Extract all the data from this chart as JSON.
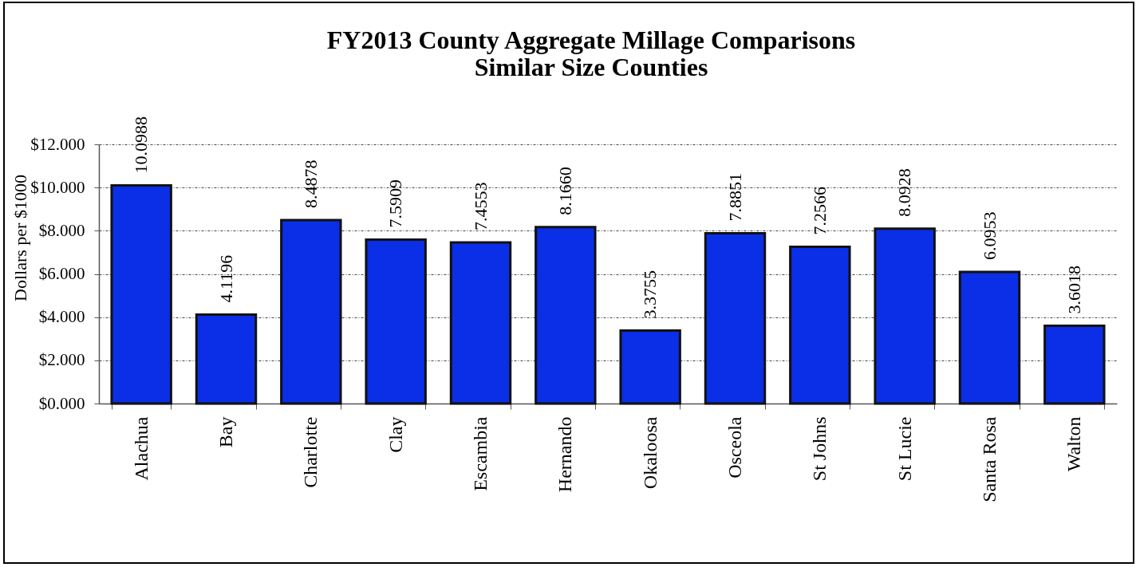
{
  "chart_data": {
    "type": "bar",
    "title": "FY2013 County Aggregate Millage Comparisons",
    "subtitle": "Similar Size Counties",
    "ylabel": "Dollars per $1000",
    "categories": [
      "Alachua",
      "Bay",
      "Charlotte",
      "Clay",
      "Escambia",
      "Hernando",
      "Okaloosa",
      "Osceola",
      "St Johns",
      "St Lucie",
      "Santa Rosa",
      "Walton"
    ],
    "values": [
      10.0988,
      4.1196,
      8.4878,
      7.5909,
      7.4553,
      8.166,
      3.3755,
      7.8851,
      7.2566,
      8.0928,
      6.0953,
      3.6018
    ],
    "value_labels": [
      "10.0988",
      "4.1196",
      "8.4878",
      "7.5909",
      "7.4553",
      "8.1660",
      "3.3755",
      "7.8851",
      "7.2566",
      "8.0928",
      "6.0953",
      "3.6018"
    ],
    "color": "#0a2fe6",
    "ylim": [
      0,
      12
    ],
    "yticks": [
      {
        "value": 0,
        "label": "$0.000"
      },
      {
        "value": 2,
        "label": "$2.000"
      },
      {
        "value": 4,
        "label": "$4.000"
      },
      {
        "value": 6,
        "label": "$6.000"
      },
      {
        "value": 8,
        "label": "$8.000"
      },
      {
        "value": 10,
        "label": "$10.000"
      },
      {
        "value": 12,
        "label": "$12.000"
      }
    ],
    "grid": "y"
  }
}
